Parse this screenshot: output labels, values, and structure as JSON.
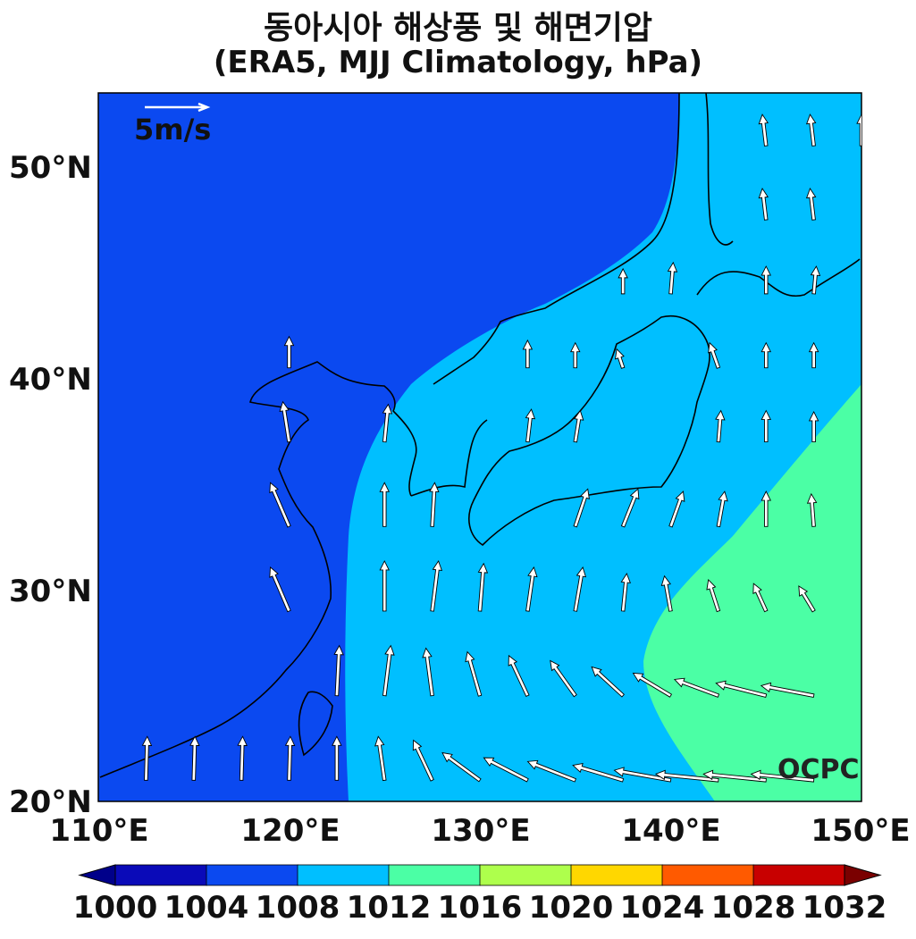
{
  "title": "동아시아 해상풍 및 해면기압",
  "subtitle": "(ERA5, MJJ Climatology, hPa)",
  "lat_labels": [
    "50°N",
    "40°N",
    "30°N",
    "20°N"
  ],
  "lon_labels": [
    "110°E",
    "120°E",
    "130°E",
    "140°E",
    "150°E"
  ],
  "wind_reference": {
    "label": "5m/s",
    "value_ms": 5
  },
  "logo": "OCPC",
  "colorbar": {
    "ticks": [
      "1000",
      "1004",
      "1008",
      "1012",
      "1016",
      "1020",
      "1024",
      "1028",
      "1032"
    ],
    "bins": [
      {
        "min": 1000,
        "max": 1004,
        "color": "#0a0ab8"
      },
      {
        "min": 1004,
        "max": 1008,
        "color": "#0b49f0"
      },
      {
        "min": 1008,
        "max": 1012,
        "color": "#00bfff"
      },
      {
        "min": 1012,
        "max": 1016,
        "color": "#4bffa5"
      },
      {
        "min": 1016,
        "max": 1020,
        "color": "#aeff4c"
      },
      {
        "min": 1020,
        "max": 1024,
        "color": "#ffd700"
      },
      {
        "min": 1024,
        "max": 1028,
        "color": "#ff5a00"
      },
      {
        "min": 1028,
        "max": 1032,
        "color": "#c80000"
      }
    ],
    "under_color": "#00008a",
    "over_color": "#7a0000",
    "extend": "both"
  },
  "map": {
    "lon_range": [
      110,
      150
    ],
    "lat_range": [
      20,
      53.5
    ],
    "fill_colors": {
      "low": "#0b49f0",
      "mid": "#00bfff",
      "high": "#4bffa5"
    },
    "wind_vector_colors": {
      "fill": "#ffffff",
      "stroke": "#000000"
    },
    "wind_direction_note_free": true,
    "wind_vectors": [
      {
        "lon": 112.5,
        "lat": 21,
        "u": 0.1,
        "v": 3.5
      },
      {
        "lon": 115,
        "lat": 21,
        "u": 0.1,
        "v": 3.5
      },
      {
        "lon": 117.5,
        "lat": 21,
        "u": 0.1,
        "v": 3.5
      },
      {
        "lon": 120,
        "lat": 21,
        "u": 0.1,
        "v": 3.5
      },
      {
        "lon": 122.5,
        "lat": 21,
        "u": 0.0,
        "v": 3.5
      },
      {
        "lon": 125,
        "lat": 21,
        "u": -0.5,
        "v": 3.5
      },
      {
        "lon": 127.5,
        "lat": 21,
        "u": -1.5,
        "v": 3.2
      },
      {
        "lon": 130,
        "lat": 21,
        "u": -3,
        "v": 2.2
      },
      {
        "lon": 132.5,
        "lat": 21,
        "u": -3.5,
        "v": 1.8
      },
      {
        "lon": 135,
        "lat": 21,
        "u": -3.8,
        "v": 1.5
      },
      {
        "lon": 137.5,
        "lat": 21,
        "u": -4,
        "v": 1.2
      },
      {
        "lon": 140,
        "lat": 21,
        "u": -4.5,
        "v": 0.8
      },
      {
        "lon": 142.5,
        "lat": 21,
        "u": -5,
        "v": 0.5
      },
      {
        "lon": 145,
        "lat": 21,
        "u": -5,
        "v": 0.5
      },
      {
        "lon": 147.5,
        "lat": 21,
        "u": -5,
        "v": 0.5
      },
      {
        "lon": 122.5,
        "lat": 25,
        "u": 0.2,
        "v": 4
      },
      {
        "lon": 125,
        "lat": 25,
        "u": 0.5,
        "v": 4
      },
      {
        "lon": 127.5,
        "lat": 25,
        "u": -0.5,
        "v": 3.8
      },
      {
        "lon": 130,
        "lat": 25,
        "u": -1,
        "v": 3.5
      },
      {
        "lon": 132.5,
        "lat": 25,
        "u": -1.5,
        "v": 3.2
      },
      {
        "lon": 135,
        "lat": 25,
        "u": -2,
        "v": 2.8
      },
      {
        "lon": 137.5,
        "lat": 25,
        "u": -2.5,
        "v": 2.3
      },
      {
        "lon": 140,
        "lat": 25,
        "u": -3,
        "v": 1.8
      },
      {
        "lon": 142.5,
        "lat": 25,
        "u": -3.5,
        "v": 1.3
      },
      {
        "lon": 145,
        "lat": 25,
        "u": -4,
        "v": 1
      },
      {
        "lon": 147.5,
        "lat": 25,
        "u": -4.2,
        "v": 0.8
      },
      {
        "lon": 120,
        "lat": 29,
        "u": -1.5,
        "v": 3.5
      },
      {
        "lon": 125,
        "lat": 29,
        "u": 0,
        "v": 4
      },
      {
        "lon": 127.5,
        "lat": 29,
        "u": 0.5,
        "v": 4
      },
      {
        "lon": 130,
        "lat": 29,
        "u": 0.3,
        "v": 3.8
      },
      {
        "lon": 132.5,
        "lat": 29,
        "u": 0.5,
        "v": 3.5
      },
      {
        "lon": 135,
        "lat": 29,
        "u": 0.6,
        "v": 3.5
      },
      {
        "lon": 137.5,
        "lat": 29,
        "u": 0.3,
        "v": 3
      },
      {
        "lon": 140,
        "lat": 29,
        "u": -0.5,
        "v": 2.8
      },
      {
        "lon": 142.5,
        "lat": 29,
        "u": -0.8,
        "v": 2.5
      },
      {
        "lon": 145,
        "lat": 29,
        "u": -1,
        "v": 2.2
      },
      {
        "lon": 147.5,
        "lat": 29,
        "u": -1.2,
        "v": 2
      },
      {
        "lon": 120,
        "lat": 33,
        "u": -1.5,
        "v": 3.5
      },
      {
        "lon": 125,
        "lat": 33,
        "u": 0,
        "v": 3.5
      },
      {
        "lon": 127.5,
        "lat": 33,
        "u": 0.2,
        "v": 3.5
      },
      {
        "lon": 135,
        "lat": 33,
        "u": 1,
        "v": 3
      },
      {
        "lon": 137.5,
        "lat": 33,
        "u": 1.2,
        "v": 3
      },
      {
        "lon": 140,
        "lat": 33,
        "u": 1,
        "v": 2.8
      },
      {
        "lon": 142.5,
        "lat": 33,
        "u": 0.5,
        "v": 2.8
      },
      {
        "lon": 145,
        "lat": 33,
        "u": 0,
        "v": 2.8
      },
      {
        "lon": 147.5,
        "lat": 33,
        "u": -0.2,
        "v": 2.6
      },
      {
        "lon": 120,
        "lat": 37,
        "u": -0.5,
        "v": 3.2
      },
      {
        "lon": 125,
        "lat": 37,
        "u": 0.3,
        "v": 3
      },
      {
        "lon": 132.5,
        "lat": 37,
        "u": 0.3,
        "v": 2.6
      },
      {
        "lon": 135,
        "lat": 37,
        "u": 0.4,
        "v": 2.5
      },
      {
        "lon": 142.5,
        "lat": 37,
        "u": 0.2,
        "v": 2.5
      },
      {
        "lon": 145,
        "lat": 37,
        "u": 0,
        "v": 2.5
      },
      {
        "lon": 147.5,
        "lat": 37,
        "u": 0,
        "v": 2.4
      },
      {
        "lon": 120,
        "lat": 40.5,
        "u": 0,
        "v": 2.5
      },
      {
        "lon": 132.5,
        "lat": 40.5,
        "u": 0,
        "v": 2.2
      },
      {
        "lon": 135,
        "lat": 40.5,
        "u": 0,
        "v": 2
      },
      {
        "lon": 137.5,
        "lat": 40.5,
        "u": -0.5,
        "v": 1.5
      },
      {
        "lon": 142.5,
        "lat": 40.5,
        "u": -0.7,
        "v": 2
      },
      {
        "lon": 145,
        "lat": 40.5,
        "u": 0,
        "v": 2
      },
      {
        "lon": 147.5,
        "lat": 40.5,
        "u": 0,
        "v": 2
      },
      {
        "lon": 137.5,
        "lat": 44,
        "u": 0,
        "v": 2
      },
      {
        "lon": 140,
        "lat": 44,
        "u": 0.2,
        "v": 2.5
      },
      {
        "lon": 145,
        "lat": 44,
        "u": 0,
        "v": 2.2
      },
      {
        "lon": 147.5,
        "lat": 44,
        "u": 0.2,
        "v": 2.2
      },
      {
        "lon": 145,
        "lat": 47.5,
        "u": -0.3,
        "v": 2.5
      },
      {
        "lon": 147.5,
        "lat": 47.5,
        "u": -0.3,
        "v": 2.5
      },
      {
        "lon": 145,
        "lat": 51,
        "u": -0.3,
        "v": 2.5
      },
      {
        "lon": 147.5,
        "lat": 51,
        "u": -0.3,
        "v": 2.5
      },
      {
        "lon": 150,
        "lat": 51,
        "u": 0,
        "v": 2.5
      }
    ]
  }
}
